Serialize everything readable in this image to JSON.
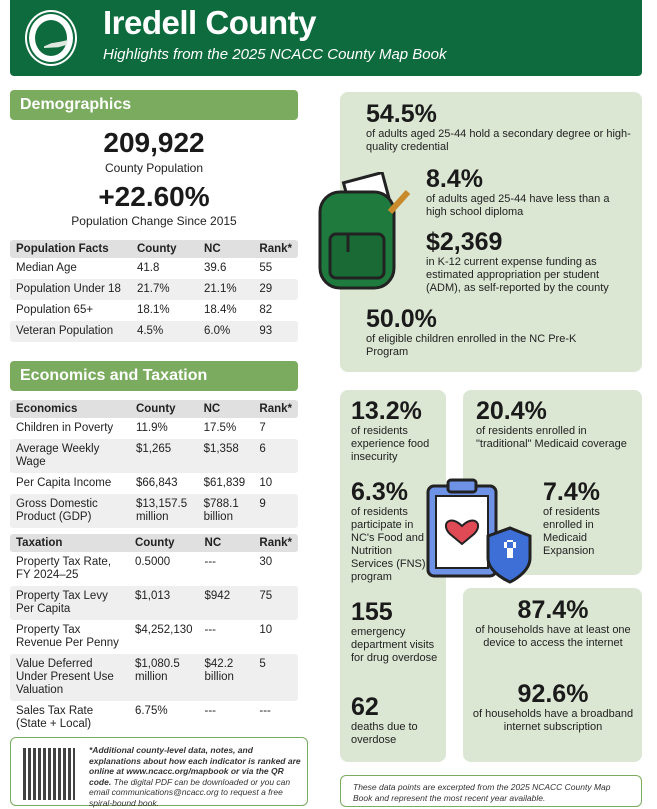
{
  "header": {
    "title": "Iredell County",
    "subtitle": "Highlights from the 2025 NCACC County Map Book"
  },
  "demographics": {
    "heading": "Demographics",
    "population": "209,922",
    "population_label": "County Population",
    "change": "+22.60%",
    "change_label": "Population Change Since 2015",
    "table": {
      "headers": [
        "Population Facts",
        "County",
        "NC",
        "Rank*"
      ],
      "rows": [
        [
          "Median Age",
          "41.8",
          "39.6",
          "55"
        ],
        [
          "Population Under 18",
          "21.7%",
          "21.1%",
          "29"
        ],
        [
          "Population 65+",
          "18.1%",
          "18.4%",
          "82"
        ],
        [
          "Veteran Population",
          "4.5%",
          "6.0%",
          "93"
        ]
      ]
    }
  },
  "economics": {
    "heading": "Economics and Taxation",
    "table": {
      "headers": [
        "Economics",
        "County",
        "NC",
        "Rank*"
      ],
      "rows": [
        [
          "Children in Poverty",
          "11.9%",
          "17.5%",
          "7"
        ],
        [
          "Average Weekly Wage",
          "$1,265",
          "$1,358",
          "6"
        ],
        [
          "Per Capita Income",
          "$66,843",
          "$61,839",
          "10"
        ],
        [
          "Gross Domestic Product (GDP)",
          "$13,157.5 million",
          "$788.1 billion",
          "9"
        ]
      ]
    },
    "taxation": {
      "headers": [
        "Taxation",
        "County",
        "NC",
        "Rank*"
      ],
      "rows": [
        [
          "Property Tax Rate, FY 2024–25",
          "0.5000",
          "---",
          "30"
        ],
        [
          "Property Tax Levy Per Capita",
          "$1,013",
          "$942",
          "75"
        ],
        [
          "Property Tax Revenue Per Penny",
          "$4,252,130",
          "---",
          "10"
        ],
        [
          "Value Deferred Under Present Use Valuation",
          "$1,080.5 million",
          "$42.2 billion",
          "5"
        ],
        [
          "Sales Tax Rate (State + Local)",
          "6.75%",
          "---",
          "---"
        ]
      ]
    }
  },
  "education": [
    {
      "value": "54.5%",
      "desc": "of adults aged 25-44 hold a secondary degree or high-quality credential"
    },
    {
      "value": "8.4%",
      "desc": "of adults aged 25-44 have less than a high school diploma"
    },
    {
      "value": "$2,369",
      "desc": "in K-12 current expense funding as estimated appropriation per student (ADM), as self-reported by the county"
    },
    {
      "value": "50.0%",
      "desc": "of eligible children enrolled in the NC Pre-K Program"
    }
  ],
  "health": [
    {
      "value": "13.2%",
      "desc": "of residents experience food insecurity"
    },
    {
      "value": "6.3%",
      "desc": "of residents participate in NC's Food and Nutrition Services (FNS) program"
    },
    {
      "value": "155",
      "desc": "emergency department visits for drug overdose"
    },
    {
      "value": "62",
      "desc": "deaths due to overdose"
    },
    {
      "value": "20.4%",
      "desc": "of residents enrolled in \"traditional\" Medicaid coverage"
    },
    {
      "value": "7.4%",
      "desc": "of residents enrolled in Medicaid Expansion"
    }
  ],
  "internet": [
    {
      "value": "87.4%",
      "desc": "of households have at least one device to access the internet"
    },
    {
      "value": "92.6%",
      "desc": "of households have a broadband internet subscription"
    }
  ],
  "footer": {
    "qr_note_bold": "*Additional county-level data, notes, and explanations about how each indicator is ranked are online at www.ncacc.org/mapbook or via the QR code.",
    "qr_note": " The digital PDF can be downloaded or you can email communications@ncacc.org to request a free spiral-bound book.",
    "source_note": "These data points are excerpted from the 2025 NCACC County Map Book and represent the most recent year available."
  }
}
